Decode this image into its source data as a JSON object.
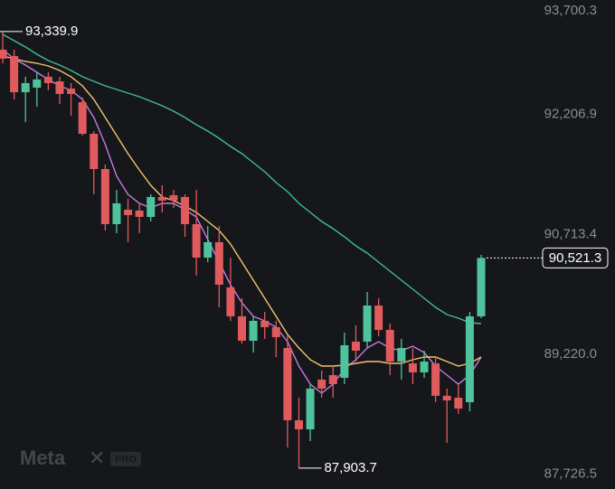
{
  "chart_data": {
    "type": "candlestick",
    "up_color": "#4fc49c",
    "down_color": "#e05a5e",
    "ylim": [
      87644,
      93733
    ],
    "yticks": [
      {
        "value": 93700.3,
        "label": "93,700.3"
      },
      {
        "value": 92206.9,
        "label": "92,206.9"
      },
      {
        "value": 90713.4,
        "label": "90,713.4"
      },
      {
        "value": 89220.0,
        "label": "89,220.0"
      },
      {
        "value": 87726.5,
        "label": "87,726.5"
      }
    ],
    "open": [
      93114,
      93035,
      92585,
      92642,
      92777,
      92720,
      92630,
      92461,
      92067,
      91628,
      90942,
      91122,
      91111,
      91032,
      91280,
      91302,
      91280,
      90942,
      90525,
      90717,
      90154,
      89794,
      89490,
      89738,
      89659,
      89400,
      88500,
      88387,
      89006,
      89062,
      89028,
      89479,
      89479,
      89929,
      89625,
      89231,
      89208,
      89096,
      89208,
      88804,
      88781,
      88725,
      89794
    ],
    "high": [
      93339.9,
      93114,
      92777,
      92833,
      92833,
      92777,
      92698,
      92518,
      92101,
      91685,
      91369,
      91257,
      91201,
      91313,
      91426,
      91369,
      91313,
      91369,
      90919,
      90919,
      90525,
      90019,
      89794,
      89850,
      89738,
      89569,
      88781,
      88950,
      89118,
      89175,
      89591,
      89681,
      90098,
      90019,
      89704,
      89513,
      89400,
      89366,
      89287,
      88894,
      88950,
      89850,
      90559
    ],
    "low": [
      92945,
      92495,
      92214,
      92405,
      92608,
      92439,
      92292,
      92045,
      91313,
      90863,
      90829,
      90717,
      90829,
      90976,
      91088,
      91145,
      90784,
      90300,
      90469,
      89906,
      89738,
      89456,
      89344,
      89513,
      89287,
      88162,
      87903.7,
      88241,
      88781,
      88781,
      88950,
      89231,
      89400,
      89546,
      89062,
      89006,
      88950,
      89028,
      88725,
      88219,
      88579,
      88612,
      89771
    ],
    "close": [
      93002,
      92585,
      92698,
      92743,
      92698,
      92563,
      92563,
      92067,
      91628,
      90942,
      91201,
      91055,
      91032,
      91280,
      91235,
      91235,
      90942,
      90525,
      90717,
      90188,
      89794,
      89490,
      89738,
      89659,
      89535,
      88500,
      88387,
      88894,
      88894,
      88950,
      89434,
      89366,
      89929,
      89625,
      89231,
      89400,
      89096,
      89231,
      88804,
      88747,
      88646,
      89794,
      90521.3
    ],
    "overlays": [
      {
        "color": "#c47be0",
        "values": [
          93114,
          93002,
          92923,
          92833,
          92743,
          92664,
          92608,
          92495,
          92270,
          91933,
          91538,
          91313,
          91201,
          91145,
          91201,
          91201,
          91122,
          91032,
          90751,
          90469,
          90188,
          89963,
          89794,
          89738,
          89659,
          89479,
          89175,
          88950,
          88837,
          88950,
          89141,
          89254,
          89400,
          89479,
          89400,
          89366,
          89422,
          89344,
          89175,
          89062,
          88950,
          89062,
          89287
        ]
      },
      {
        "color": "#f1c56e",
        "values": [
          93035,
          93002,
          92968,
          92945,
          92911,
          92855,
          92777,
          92664,
          92495,
          92270,
          92045,
          91820,
          91617,
          91426,
          91280,
          91235,
          91167,
          91088,
          90976,
          90863,
          90694,
          90469,
          90244,
          90019,
          89794,
          89569,
          89400,
          89254,
          89175,
          89175,
          89186,
          89208,
          89231,
          89231,
          89208,
          89208,
          89254,
          89287,
          89287,
          89231,
          89175,
          89208,
          89287
        ]
      },
      {
        "color": "#3fbd93",
        "values": [
          93305,
          93227,
          93148,
          93058,
          92979,
          92923,
          92855,
          92777,
          92720,
          92664,
          92619,
          92574,
          92529,
          92472,
          92416,
          92349,
          92270,
          92180,
          92101,
          92011,
          91910,
          91820,
          91707,
          91595,
          91460,
          91347,
          91201,
          91088,
          90976,
          90886,
          90784,
          90672,
          90582,
          90469,
          90357,
          90244,
          90131,
          90019,
          89906,
          89816,
          89771,
          89715,
          89704
        ]
      }
    ],
    "high_marker": {
      "value": 93339.9,
      "label": "93,339.9"
    },
    "low_marker": {
      "value": 87903.7,
      "label": "87,903.7"
    },
    "last_price": {
      "value": 90521.3,
      "label": "90,521.3"
    },
    "watermark": {
      "text": "Meta",
      "badge": "PRO"
    }
  }
}
